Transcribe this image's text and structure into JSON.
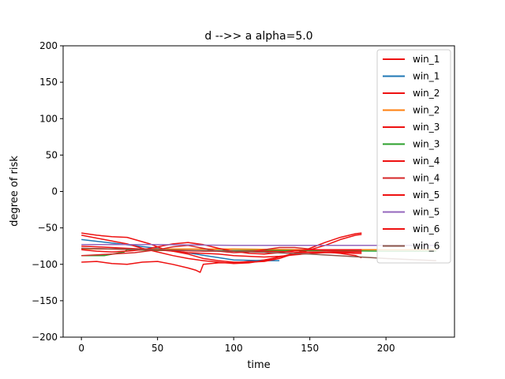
{
  "chart_data": {
    "type": "line",
    "title": "d -->> a  alpha=5.0",
    "xlabel": "time",
    "ylabel": "degree of risk",
    "xlim": [
      -12,
      245
    ],
    "ylim": [
      -200,
      200
    ],
    "xticks": [
      0,
      50,
      100,
      150,
      200
    ],
    "yticks": [
      -200,
      -150,
      -100,
      -50,
      0,
      50,
      100,
      150,
      200
    ],
    "xtick_labels": [
      "0",
      "50",
      "100",
      "150",
      "200"
    ],
    "ytick_labels": [
      "−200",
      "−150",
      "−100",
      "−50",
      "0",
      "50",
      "100",
      "150",
      "200"
    ],
    "grid": false,
    "legend_position": "top-right",
    "series": [
      {
        "name": "win_1",
        "color": "#ee1111",
        "x": [
          0,
          10,
          20,
          30,
          40,
          50,
          60,
          70,
          75,
          78,
          80,
          90,
          100,
          110,
          120,
          130,
          140,
          150,
          160,
          170,
          180,
          184
        ],
        "y": [
          -97,
          -96,
          -99,
          -100,
          -97,
          -96,
          -100,
          -105,
          -108,
          -111,
          -100,
          -98,
          -98,
          -96,
          -94,
          -90,
          -86,
          -80,
          -74,
          -66,
          -60,
          -59
        ]
      },
      {
        "name": "win_1",
        "color": "#1f77b4",
        "x": [
          0,
          25,
          50,
          75,
          100,
          120,
          130
        ],
        "y": [
          -66,
          -72,
          -78,
          -86,
          -94,
          -95,
          -95
        ]
      },
      {
        "name": "win_2",
        "color": "#ee1111",
        "x": [
          0,
          10,
          20,
          30,
          35,
          45,
          55,
          70,
          80,
          90,
          100,
          110,
          120,
          130,
          140,
          150,
          160,
          170,
          180,
          184
        ],
        "y": [
          -57,
          -60,
          -62,
          -63,
          -66,
          -72,
          -80,
          -86,
          -92,
          -95,
          -97,
          -97,
          -96,
          -92,
          -85,
          -78,
          -70,
          -63,
          -58,
          -57
        ]
      },
      {
        "name": "win_2",
        "color": "#ff7f0e",
        "x": [
          0,
          50,
          100,
          150,
          200,
          233
        ],
        "y": [
          -79,
          -79,
          -79,
          -80,
          -80,
          -80
        ]
      },
      {
        "name": "win_3",
        "color": "#ee1111",
        "x": [
          0,
          15,
          30,
          40,
          50,
          60,
          70,
          80,
          90,
          100,
          110,
          120,
          130,
          140,
          150,
          160,
          170,
          180,
          184
        ],
        "y": [
          -60,
          -66,
          -72,
          -78,
          -83,
          -88,
          -92,
          -95,
          -97,
          -99,
          -98,
          -95,
          -90,
          -85,
          -83,
          -83,
          -85,
          -88,
          -91
        ]
      },
      {
        "name": "win_3",
        "color": "#2ca02c",
        "x": [
          0,
          15,
          28,
          30,
          50,
          100,
          150,
          200,
          233
        ],
        "y": [
          -88,
          -88,
          -83,
          -80,
          -81,
          -81,
          -81,
          -82,
          -82
        ]
      },
      {
        "name": "win_4",
        "color": "#ee1111",
        "x": [
          0,
          10,
          20,
          30,
          40,
          50,
          60,
          70,
          80,
          90,
          100,
          110,
          120,
          130,
          140,
          150,
          160,
          170,
          180,
          184
        ],
        "y": [
          -75,
          -76,
          -77,
          -78,
          -79,
          -80,
          -82,
          -84,
          -85,
          -86,
          -88,
          -89,
          -90,
          -89,
          -87,
          -85,
          -84,
          -84,
          -85,
          -85
        ]
      },
      {
        "name": "win_4",
        "color": "#d62728",
        "x": [
          0,
          20,
          35,
          50,
          60,
          70,
          80,
          90,
          100,
          110,
          120,
          130,
          140,
          150,
          160,
          170,
          180,
          184
        ],
        "y": [
          -88,
          -86,
          -84,
          -80,
          -76,
          -74,
          -78,
          -82,
          -84,
          -83,
          -80,
          -77,
          -77,
          -79,
          -81,
          -82,
          -82,
          -82
        ]
      },
      {
        "name": "win_5",
        "color": "#ee1111",
        "x": [
          0,
          10,
          20,
          30,
          40,
          50,
          60,
          70,
          80,
          90,
          100,
          110,
          120,
          130,
          140,
          150,
          160,
          170,
          180,
          184
        ],
        "y": [
          -80,
          -82,
          -83,
          -82,
          -80,
          -76,
          -72,
          -70,
          -73,
          -78,
          -82,
          -85,
          -86,
          -84,
          -81,
          -80,
          -80,
          -80,
          -80,
          -80
        ]
      },
      {
        "name": "win_5",
        "color": "#9467bd",
        "x": [
          0,
          50,
          100,
          150,
          200,
          233
        ],
        "y": [
          -73,
          -73,
          -74,
          -74,
          -74,
          -74
        ]
      },
      {
        "name": "win_6",
        "color": "#ee1111",
        "x": [
          0,
          20,
          40,
          60,
          80,
          100,
          120,
          140,
          160,
          180,
          184
        ],
        "y": [
          -78,
          -79,
          -80,
          -81,
          -82,
          -82,
          -82,
          -83,
          -83,
          -83,
          -83
        ]
      },
      {
        "name": "win_6",
        "color": "#8c564b",
        "x": [
          0,
          50,
          100,
          150,
          200,
          233
        ],
        "y": [
          -78,
          -80,
          -82,
          -86,
          -92,
          -95
        ]
      }
    ]
  }
}
